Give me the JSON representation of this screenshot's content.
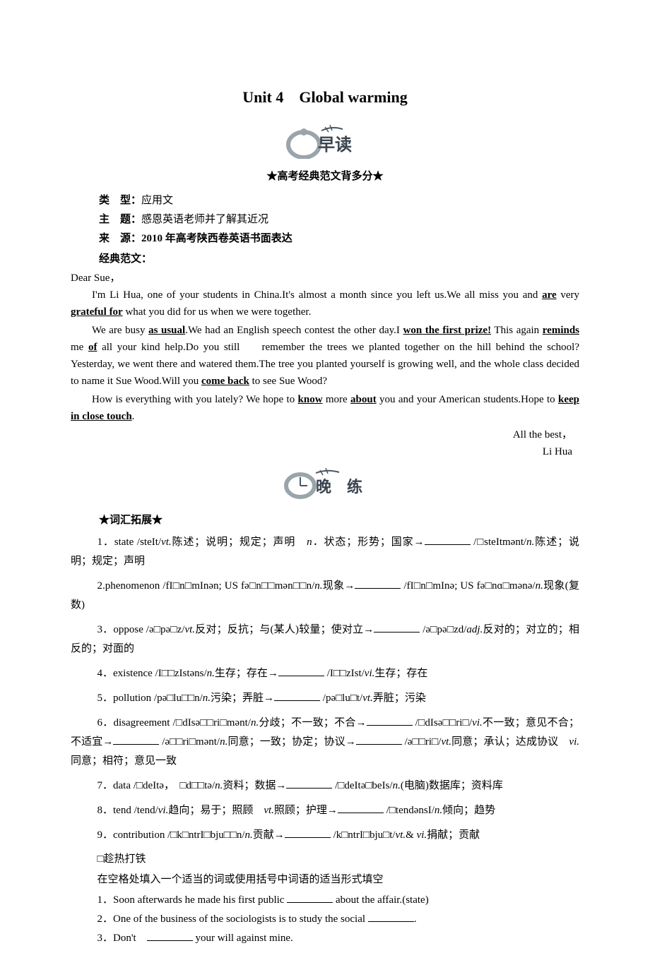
{
  "title": "Unit 4　Global warming",
  "decoration1_text": "早读",
  "star_banner1": "★高考经典范文背多分★",
  "meta": {
    "type_label": "类",
    "type_label2": "型：",
    "type_value": "应用文",
    "topic_label": "主",
    "topic_label2": "题：",
    "topic_value": "感恩英语老师并了解其近况",
    "source_label": "来",
    "source_label2": "源：",
    "source_value_pre": "2010",
    "source_value_post": " 年高考陕西卷英语书面表达"
  },
  "essay_label": "经典范文：",
  "letter": {
    "greeting": "Dear Sue，",
    "p1_a": "I'm Li Hua, one of your students in China.It's almost a month since you left us.We all miss you and ",
    "p1_b1": "are",
    "p1_c": " very ",
    "p1_b2": "grateful for",
    "p1_d": " what you did for us when we were together.",
    "p2_a": "We are busy ",
    "p2_b1": "as usual",
    "p2_c": ".We had an English speech contest the other day.I ",
    "p2_b2": "won the first prize!",
    "p2_d": " This again ",
    "p2_b3": "reminds",
    "p2_e": " me ",
    "p2_b4": "of",
    "p2_f": " all your kind help.Do you still 　 remember the trees we planted together on the hill behind the school? Yesterday, we went there and watered them.The tree you planted yourself is growing well, and the whole class decided to name it Sue Wood.Will you ",
    "p2_b5": "come back",
    "p2_g": " to see Sue Wood?",
    "p3_a": "How is everything with you lately? We hope to ",
    "p3_b1": "know",
    "p3_c": " more ",
    "p3_b2": "about",
    "p3_d": " you and your American students.Hope to ",
    "p3_b3": "keep in close touch",
    "p3_e": ".",
    "closing1": "All the best，",
    "closing2": "Li Hua"
  },
  "decoration2_text": "晚练",
  "vocab_header": "★词汇拓展★",
  "vocab": [
    {
      "pre": "1．state /steIt/",
      "pos1": "vt.",
      "mid1": "陈述；说明；规定；声明　",
      "pos2": "n．",
      "mid2": "状态；形势；国家→",
      "after": " /□steItmənt/",
      "pos3": "n.",
      "end": "陈述；说明；规定；声明"
    },
    {
      "pre": "2.phenomenon /fI□n□mInən; US fə□n□□mən□□n/",
      "pos1": "n.",
      "mid1": "现象→",
      "after": " /fI□n□mInə; US fə□nɑ□mənə/",
      "pos2": "n.",
      "end": "现象(复数)"
    },
    {
      "pre": "3．oppose /ə□pə□z/",
      "pos1": "vt.",
      "mid1": "反对；反抗；与(某人)较量；使对立→",
      "after": " /ə□pə□zd/",
      "pos2": "adj.",
      "end": "反对的；对立的；相反的；对面的"
    },
    {
      "pre": "4．existence /I□□zIstəns/",
      "pos1": "n.",
      "mid1": "生存；存在→",
      "after": " /I□□zIst/",
      "pos2": "vi.",
      "end": "生存；存在"
    },
    {
      "pre": "5．pollution /pə□lu□□n/",
      "pos1": "n.",
      "mid1": "污染；弄脏→",
      "after": " /pə□lu□t/",
      "pos2": "vt.",
      "end": "弄脏；污染"
    },
    {
      "pre": "6．disagreement /□dIsə□□ri□mənt/",
      "pos1": "n.",
      "mid1": "分歧；不一致；不合→",
      "after": " /□dIsə□□ri□/",
      "pos2": "vi.",
      "mid2": "不一致；意见不合；不适宜→",
      "after2": " /ə□□ri□mənt/",
      "pos3": "n.",
      "mid3": "同意；一致；协定；协议→",
      "after3": " /ə□□ri□/",
      "pos4": "vt.",
      "mid4": "同意；承认；达成协议　",
      "pos5": "vi.",
      "end": "同意；相符；意见一致"
    },
    {
      "pre": "7．data /□deItə，　□d□□tə/",
      "pos1": "n.",
      "mid1": "资料；数据→",
      "after": " /□deItə□beIs/",
      "pos2": "n.",
      "end": "(电脑)数据库；资料库"
    },
    {
      "pre": "8．tend /tend/",
      "pos1": "vi.",
      "mid1": "趋向；易于；照顾　",
      "pos2": "vt.",
      "mid2": "照顾；护理→",
      "after": " /□tendənsI/",
      "pos3": "n.",
      "end": "倾向；趋势"
    },
    {
      "pre": "9．contribution /□k□ntrI□bju□□n/",
      "pos1": "n.",
      "mid1": "贡献→",
      "after": " /k□ntrI□bju□t/",
      "pos2": "vt.",
      "mid2": "& ",
      "pos3": "vi.",
      "end": "捐献；贡献"
    }
  ],
  "practice": {
    "header1": "□趁热打铁",
    "header2": "在空格处填入一个适当的词或使用括号中词语的适当形式填空",
    "items": [
      {
        "pre": "1．Soon afterwards he made his first public ",
        "post": " about the affair.(state)"
      },
      {
        "pre": "2．One of the business of the sociologists is to study the social ",
        "post": "."
      },
      {
        "pre": "3．Don't　",
        "post": " your will against mine."
      }
    ]
  },
  "colors": {
    "text": "#000000",
    "bg": "#ffffff",
    "deco_gray": "#9aa5ab",
    "deco_dark": "#4a5560"
  }
}
